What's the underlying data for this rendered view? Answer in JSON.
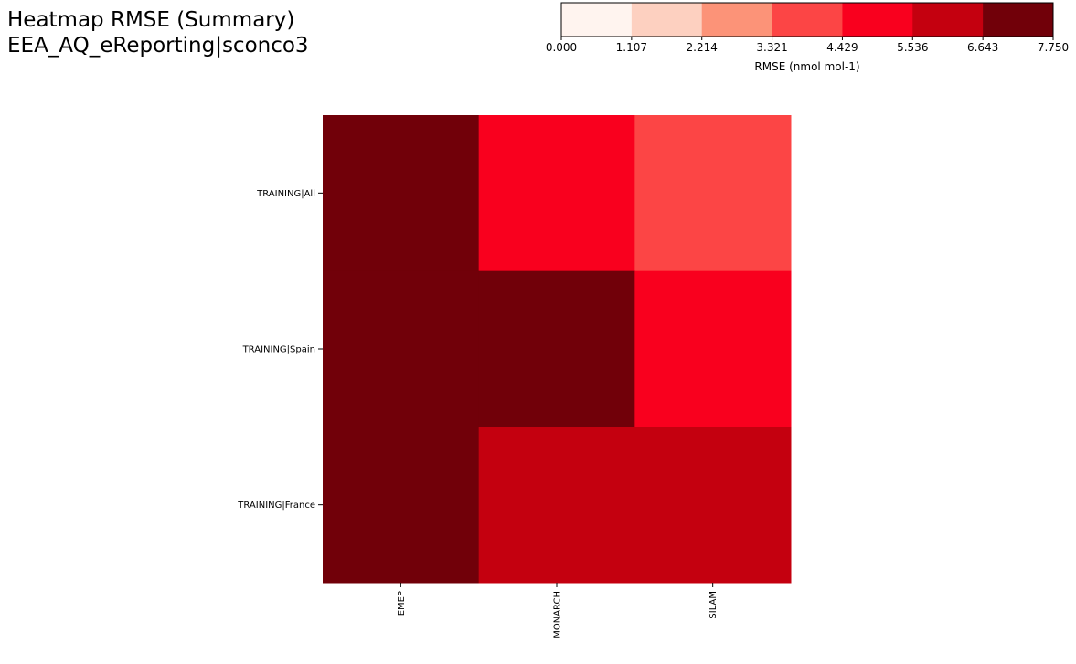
{
  "title_lines": [
    "Heatmap RMSE (Summary)",
    "EEA_AQ_eReporting|sconco3"
  ],
  "colorbar": {
    "label": "RMSE (nmol mol-1)",
    "ticks": [
      "0.000",
      "1.107",
      "2.214",
      "3.321",
      "4.429",
      "5.536",
      "6.643",
      "7.750"
    ],
    "colors": [
      "#fff4ef",
      "#fdd0c0",
      "#fc9378",
      "#fc4545",
      "#f9001e",
      "#c4000f",
      "#710009"
    ]
  },
  "chart_data": {
    "type": "heatmap",
    "title": "Heatmap RMSE (Summary)\nEEA_AQ_eReporting|sconco3",
    "x_categories": [
      "EMEP",
      "MONARCH",
      "SILAM"
    ],
    "y_categories": [
      "TRAINING|All",
      "TRAINING|Spain",
      "TRAINING|France"
    ],
    "values": [
      [
        7.75,
        5.0,
        4.0
      ],
      [
        7.75,
        7.75,
        5.0
      ],
      [
        7.75,
        6.0,
        6.0
      ]
    ],
    "value_range": [
      0.0,
      7.75
    ],
    "colorbar_label": "RMSE (nmol mol-1)"
  }
}
